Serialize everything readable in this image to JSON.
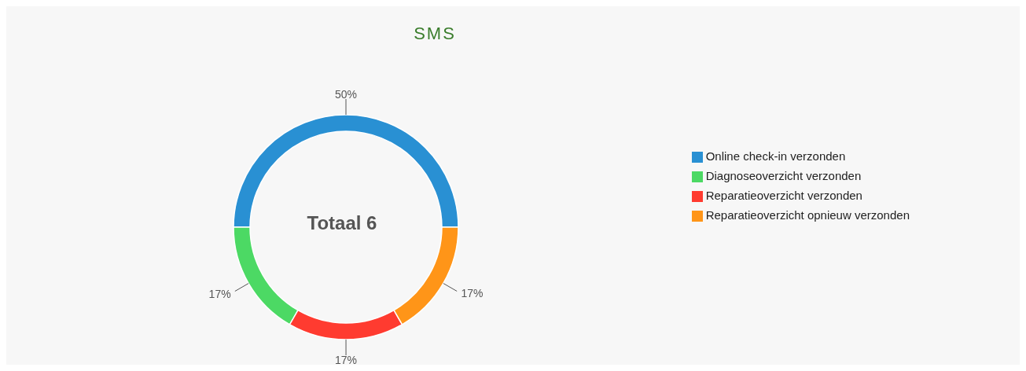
{
  "chart_data": {
    "type": "donut",
    "title": "SMS",
    "categories": [
      "Online check-in verzonden",
      "Diagnoseoverzicht verzonden",
      "Reparatieoverzicht verzonden",
      "Reparatieoverzicht opnieuw verzonden"
    ],
    "values": [
      50,
      16.67,
      16.67,
      16.66
    ],
    "value_labels": [
      "50%",
      "17%",
      "17%",
      "17%"
    ],
    "colors": [
      "#2990d3",
      "#4cd964",
      "#ff3b30",
      "#ff9518"
    ],
    "annotations": [
      "Totaal 6"
    ],
    "legend": "right"
  }
}
